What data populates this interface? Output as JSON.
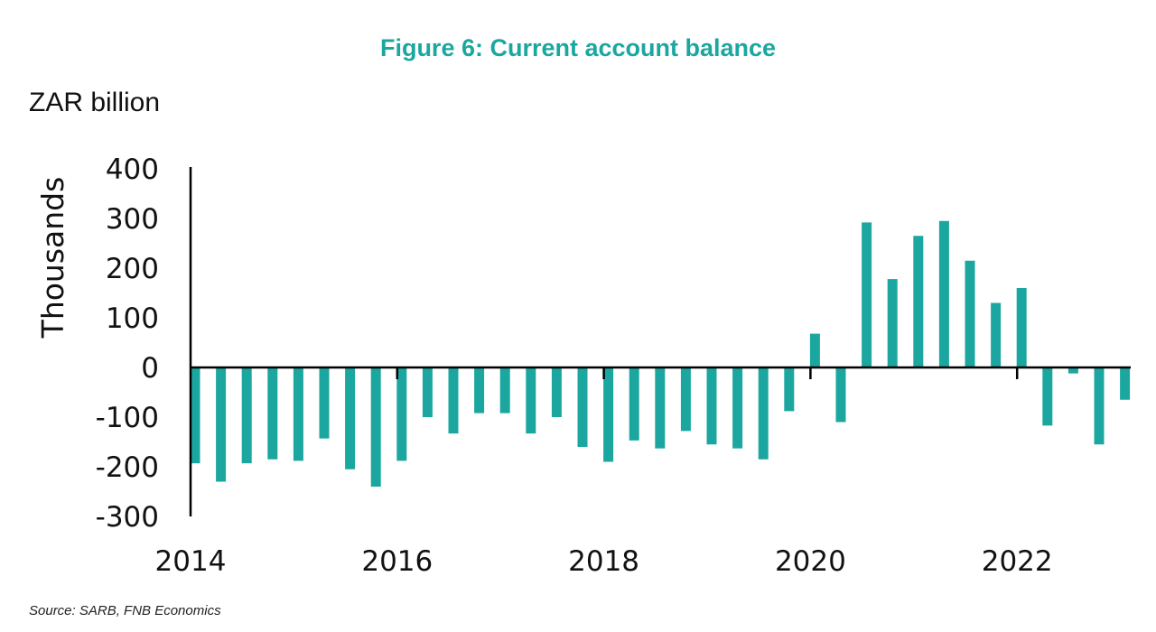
{
  "chart_data": {
    "type": "bar",
    "title": "Figure 6: Current account balance",
    "unit_label": "ZAR billion",
    "ylabel": "Thousands",
    "source": "Source: SARB, FNB Economics",
    "ylim": [
      -300,
      400
    ],
    "yticks": [
      400,
      300,
      200,
      100,
      0,
      -100,
      -200,
      -300
    ],
    "ytick_labels": [
      "400",
      "300",
      "200",
      "100",
      "0",
      "-100",
      "-200",
      "-300"
    ],
    "xticks": [
      "2014",
      "2016",
      "2018",
      "2020",
      "2022"
    ],
    "bar_color": "#1ba7a0",
    "grid": false,
    "legend": "none",
    "categories": [
      "2014Q1",
      "2014Q2",
      "2014Q3",
      "2014Q4",
      "2015Q1",
      "2015Q2",
      "2015Q3",
      "2015Q4",
      "2016Q1",
      "2016Q2",
      "2016Q3",
      "2016Q4",
      "2017Q1",
      "2017Q2",
      "2017Q3",
      "2017Q4",
      "2018Q1",
      "2018Q2",
      "2018Q3",
      "2018Q4",
      "2019Q1",
      "2019Q2",
      "2019Q3",
      "2019Q4",
      "2020Q1",
      "2020Q2",
      "2020Q3",
      "2020Q4",
      "2021Q1",
      "2021Q2",
      "2021Q3",
      "2021Q4",
      "2022Q1",
      "2022Q2",
      "2022Q3",
      "2022Q4",
      "2023Q1"
    ],
    "values": [
      -193,
      -230,
      -193,
      -185,
      -188,
      -143,
      -205,
      -240,
      -188,
      -100,
      -133,
      -92,
      -92,
      -133,
      -100,
      -160,
      -190,
      -147,
      -163,
      -128,
      -155,
      -163,
      -185,
      -88,
      68,
      -110,
      292,
      178,
      265,
      295,
      215,
      130,
      160,
      -117,
      -12,
      -155,
      -65
    ]
  }
}
